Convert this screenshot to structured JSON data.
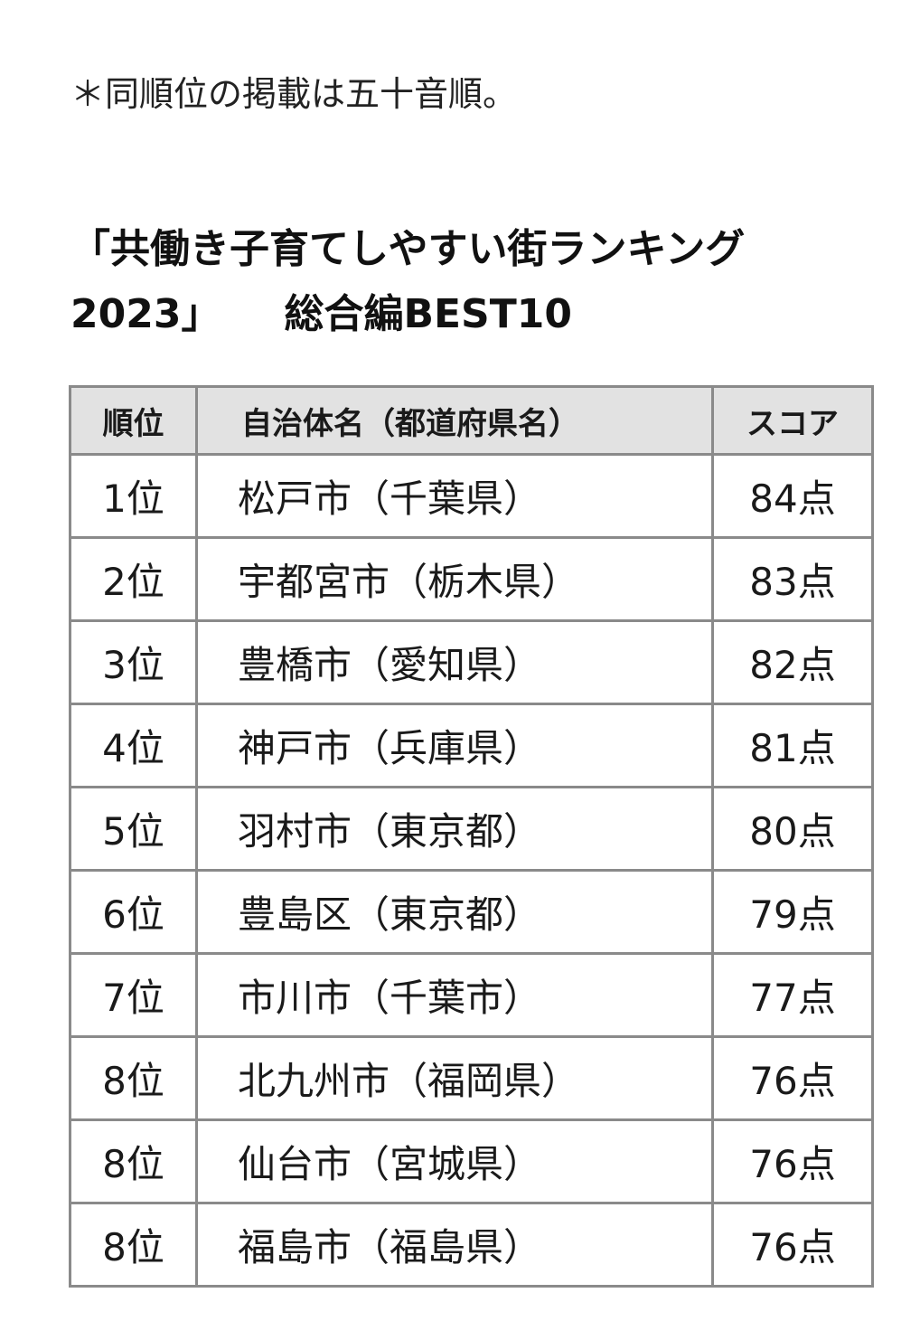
{
  "note": "＊同順位の掲載は五十音順。",
  "title": {
    "line1": "「共働き子育てしやすい街ランキング",
    "line2a": "2023」",
    "line2b": "総合編BEST10"
  },
  "table": {
    "headers": {
      "rank": "順位",
      "name": "自治体名（都道府県名）",
      "score": "スコア"
    },
    "rows": [
      {
        "rank": "1位",
        "name": "松戸市（千葉県）",
        "score": "84点"
      },
      {
        "rank": "2位",
        "name": "宇都宮市（栃木県）",
        "score": "83点"
      },
      {
        "rank": "3位",
        "name": "豊橋市（愛知県）",
        "score": "82点"
      },
      {
        "rank": "4位",
        "name": "神戸市（兵庫県）",
        "score": "81点"
      },
      {
        "rank": "5位",
        "name": "羽村市（東京都）",
        "score": "80点"
      },
      {
        "rank": "6位",
        "name": "豊島区（東京都）",
        "score": "79点"
      },
      {
        "rank": "7位",
        "name": "市川市（千葉市）",
        "score": "77点"
      },
      {
        "rank": "8位",
        "name": "北九州市（福岡県）",
        "score": "76点"
      },
      {
        "rank": "8位",
        "name": "仙台市（宮城県）",
        "score": "76点"
      },
      {
        "rank": "8位",
        "name": "福島市（福島県）",
        "score": "76点"
      }
    ]
  },
  "colors": {
    "header_bg": "#e2e2e2",
    "border": "#8a8a8a",
    "text": "#1a1a1a"
  }
}
